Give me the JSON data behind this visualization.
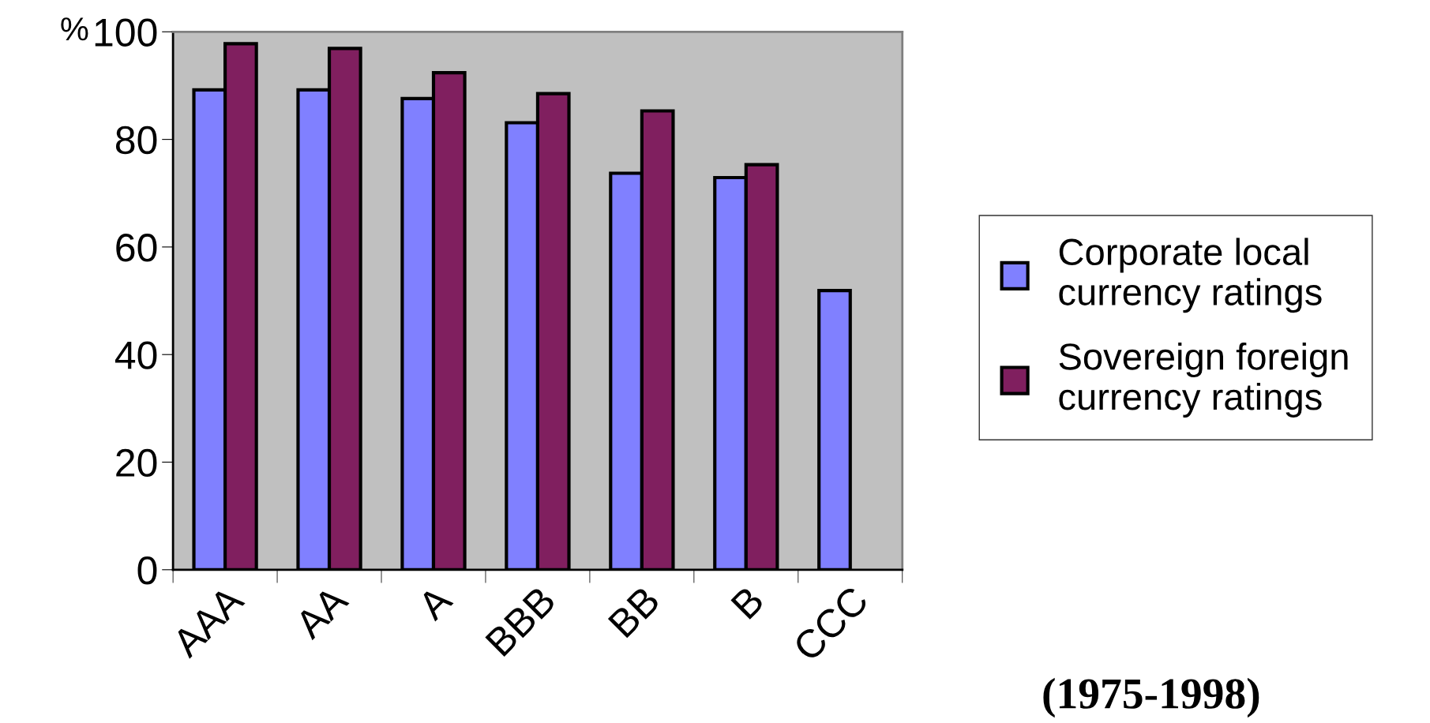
{
  "chart_data": {
    "type": "bar",
    "ylabel": "%",
    "categories": [
      "AAA",
      "AA",
      "A",
      "BBB",
      "BB",
      "B",
      "CCC"
    ],
    "series": [
      {
        "name": "Corporate local\ncurrency ratings",
        "color": "#8080ff",
        "values": [
          89.2,
          89.2,
          87.6,
          83.1,
          73.7,
          72.9,
          51.9
        ]
      },
      {
        "name": "Sovereign foreign\ncurrency ratings",
        "color": "#801f5f",
        "values": [
          97.8,
          96.9,
          92.4,
          88.5,
          85.3,
          75.3,
          null
        ]
      }
    ],
    "ylim": [
      0,
      100
    ],
    "yticks": [
      0,
      20,
      40,
      60,
      80,
      100
    ],
    "grid": false,
    "legend": "right",
    "annotations": [
      "(1975-1998)"
    ]
  }
}
